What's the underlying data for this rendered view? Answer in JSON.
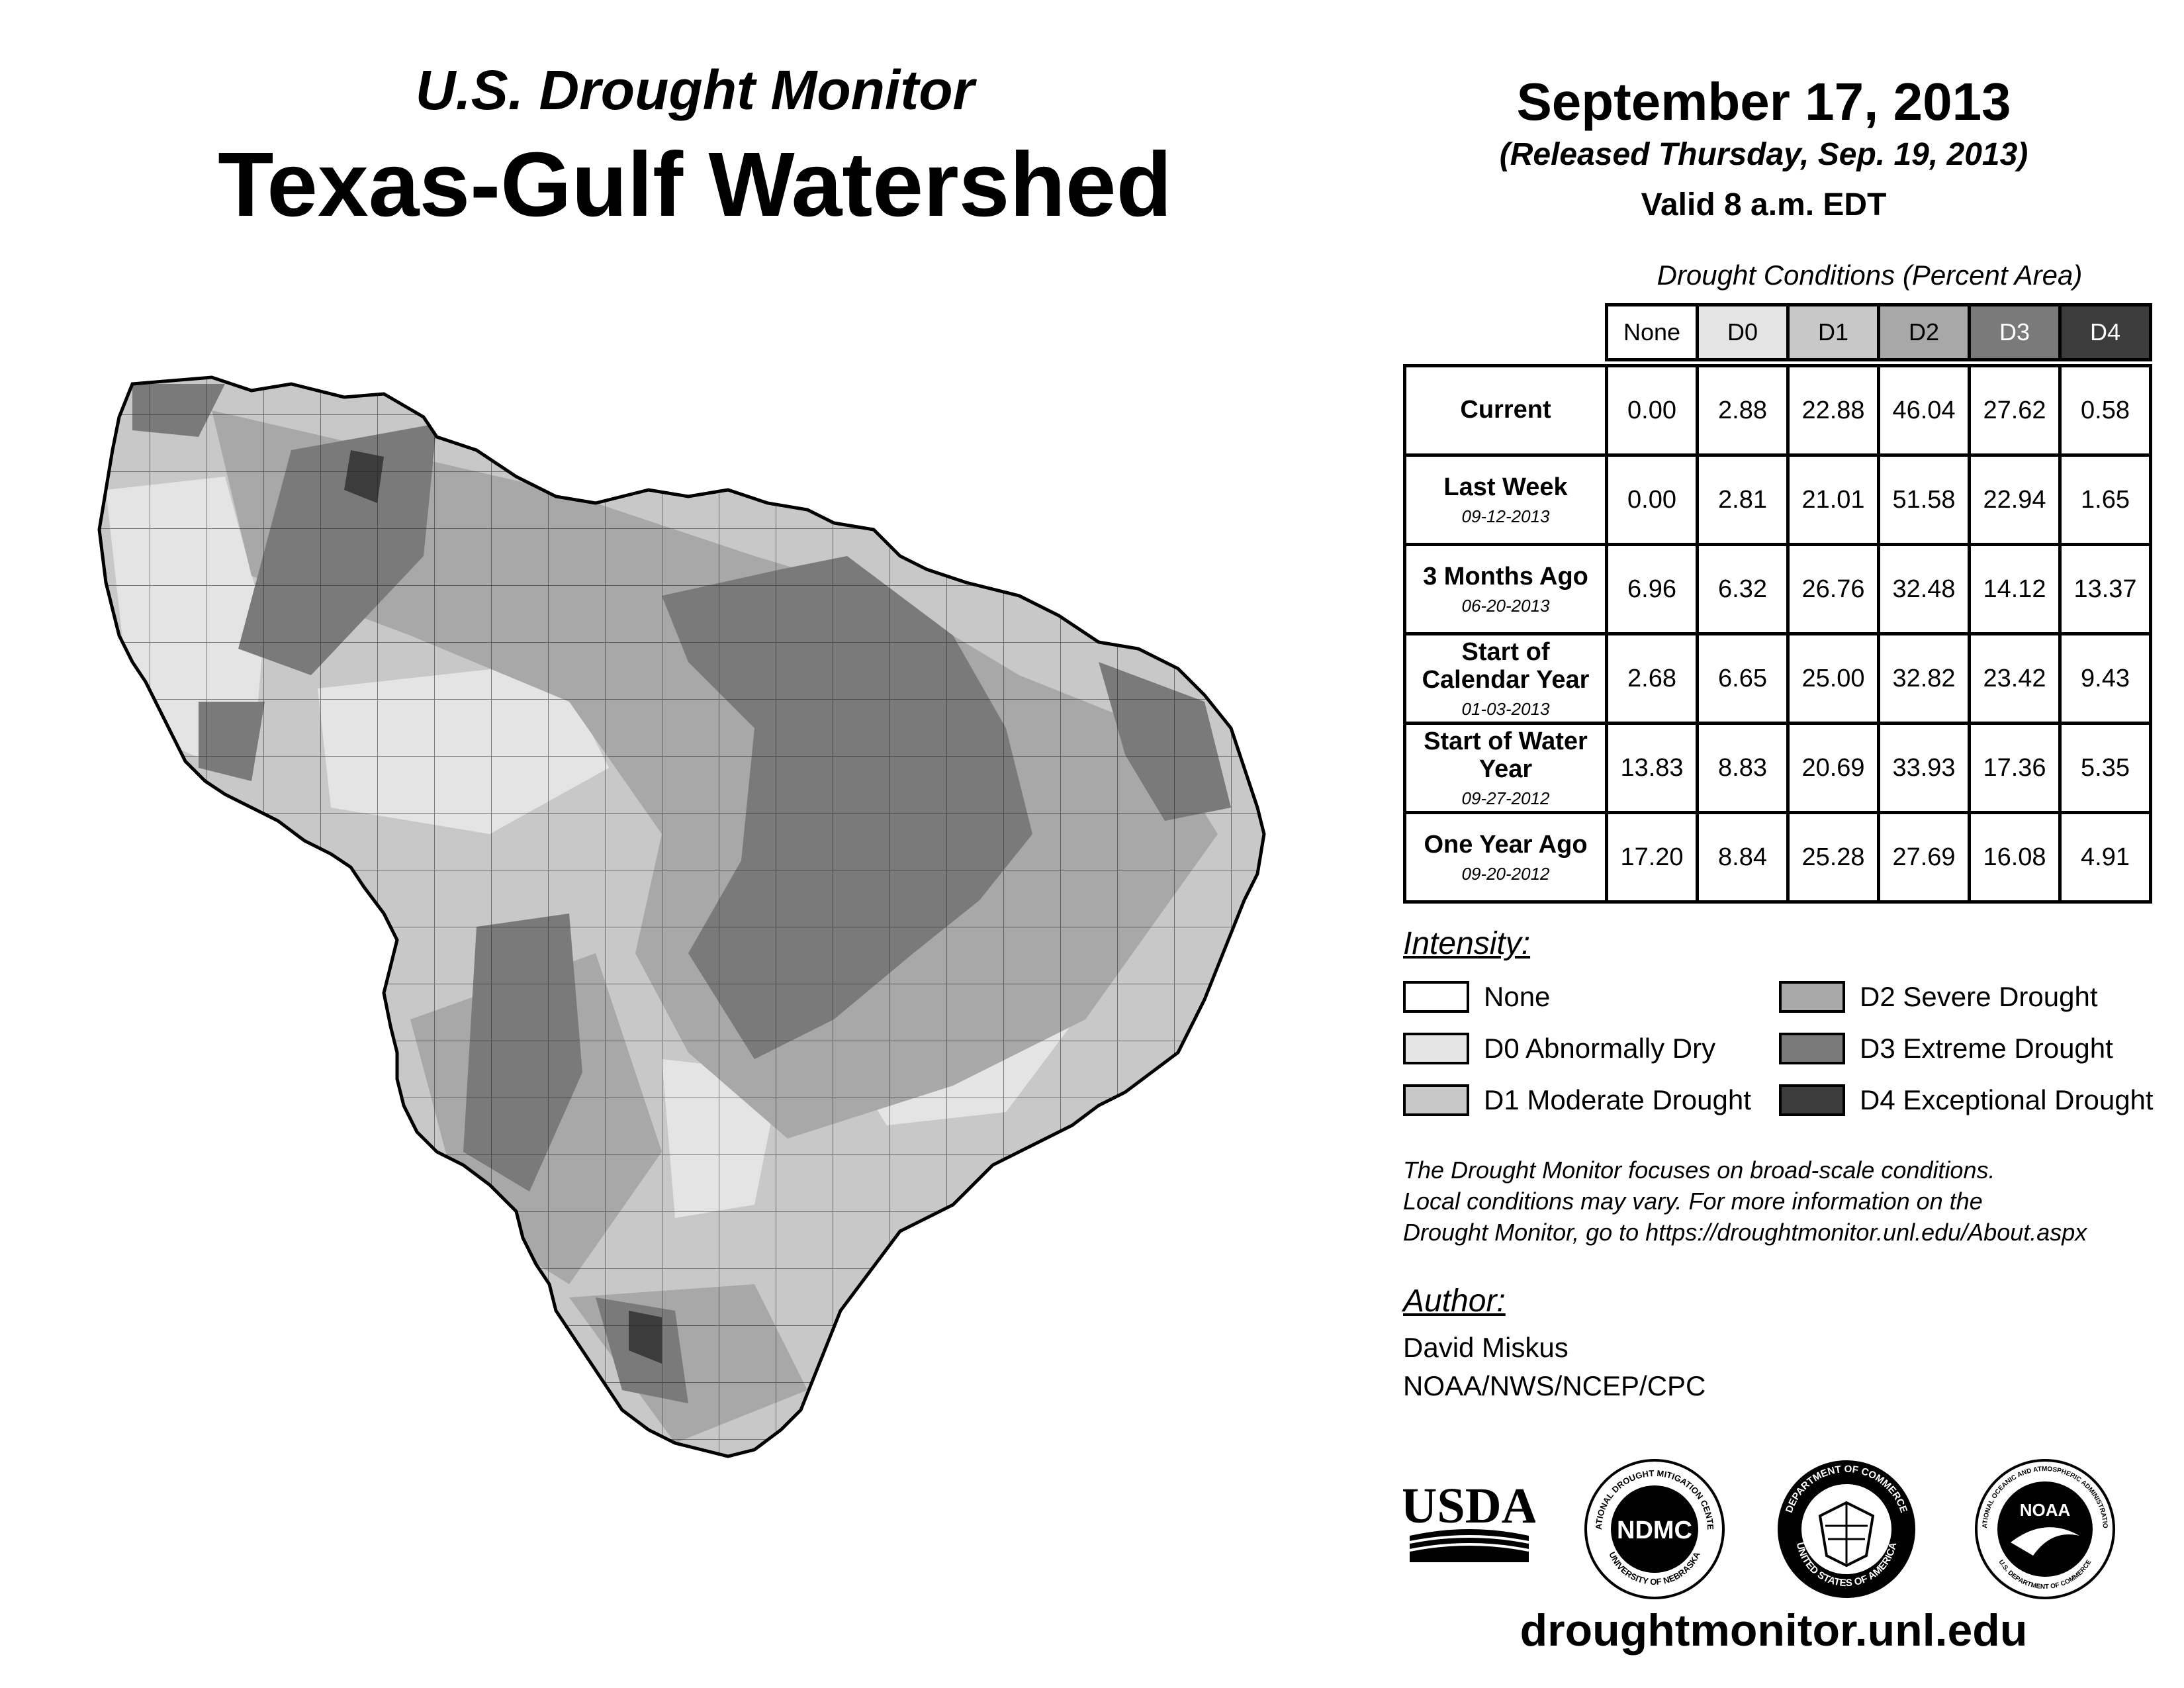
{
  "header": {
    "subtitle": "U.S. Drought Monitor",
    "title": "Texas-Gulf Watershed",
    "date": "September 17, 2013",
    "released": "(Released Thursday, Sep. 19, 2013)",
    "valid": "Valid 8 a.m. EDT"
  },
  "table": {
    "caption": "Drought Conditions (Percent Area)",
    "columns": [
      "None",
      "D0",
      "D1",
      "D2",
      "D3",
      "D4"
    ],
    "rows": [
      {
        "label": "Current",
        "date": "",
        "values": [
          "0.00",
          "2.88",
          "22.88",
          "46.04",
          "27.62",
          "0.58"
        ]
      },
      {
        "label": "Last Week",
        "date": "09-12-2013",
        "values": [
          "0.00",
          "2.81",
          "21.01",
          "51.58",
          "22.94",
          "1.65"
        ]
      },
      {
        "label": "3 Months Ago",
        "date": "06-20-2013",
        "values": [
          "6.96",
          "6.32",
          "26.76",
          "32.48",
          "14.12",
          "13.37"
        ]
      },
      {
        "label": "Start of Calendar Year",
        "date": "01-03-2013",
        "values": [
          "2.68",
          "6.65",
          "25.00",
          "32.82",
          "23.42",
          "9.43"
        ]
      },
      {
        "label": "Start of Water Year",
        "date": "09-27-2012",
        "values": [
          "13.83",
          "8.83",
          "20.69",
          "33.93",
          "17.36",
          "5.35"
        ]
      },
      {
        "label": "One Year Ago",
        "date": "09-20-2012",
        "values": [
          "17.20",
          "8.84",
          "25.28",
          "27.69",
          "16.08",
          "4.91"
        ]
      }
    ]
  },
  "legend": {
    "heading": "Intensity:",
    "items": [
      {
        "label": "None",
        "color": "#ffffff"
      },
      {
        "label": "D0 Abnormally Dry",
        "color": "#e4e4e4"
      },
      {
        "label": "D1 Moderate Drought",
        "color": "#c8c8c8"
      },
      {
        "label": "D2 Severe Drought",
        "color": "#a8a8a8"
      },
      {
        "label": "D3 Extreme Drought",
        "color": "#7a7a7a"
      },
      {
        "label": "D4 Exceptional Drought",
        "color": "#3c3c3c"
      }
    ]
  },
  "note": {
    "line1": "The Drought Monitor focuses on broad-scale conditions.",
    "line2": "Local conditions may vary. For more information on the",
    "line3": "Drought Monitor, go to https://droughtmonitor.unl.edu/About.aspx"
  },
  "author": {
    "heading": "Author:",
    "name": "David Miskus",
    "org": "NOAA/NWS/NCEP/CPC"
  },
  "logos": {
    "usda": "USDA",
    "ndmc": "NDMC",
    "ndmc_ring": "NATIONAL DROUGHT MITIGATION CENTER",
    "ndmc_ring_bottom": "UNIVERSITY OF NEBRASKA",
    "commerce_ring": "DEPARTMENT OF COMMERCE",
    "commerce_ring_bottom": "UNITED STATES OF AMERICA",
    "noaa": "NOAA",
    "noaa_ring": "NATIONAL OCEANIC AND ATMOSPHERIC ADMINISTRATION",
    "noaa_ring_bottom": "U.S. DEPARTMENT OF COMMERCE"
  },
  "footer": {
    "url": "droughtmonitor.unl.edu"
  }
}
